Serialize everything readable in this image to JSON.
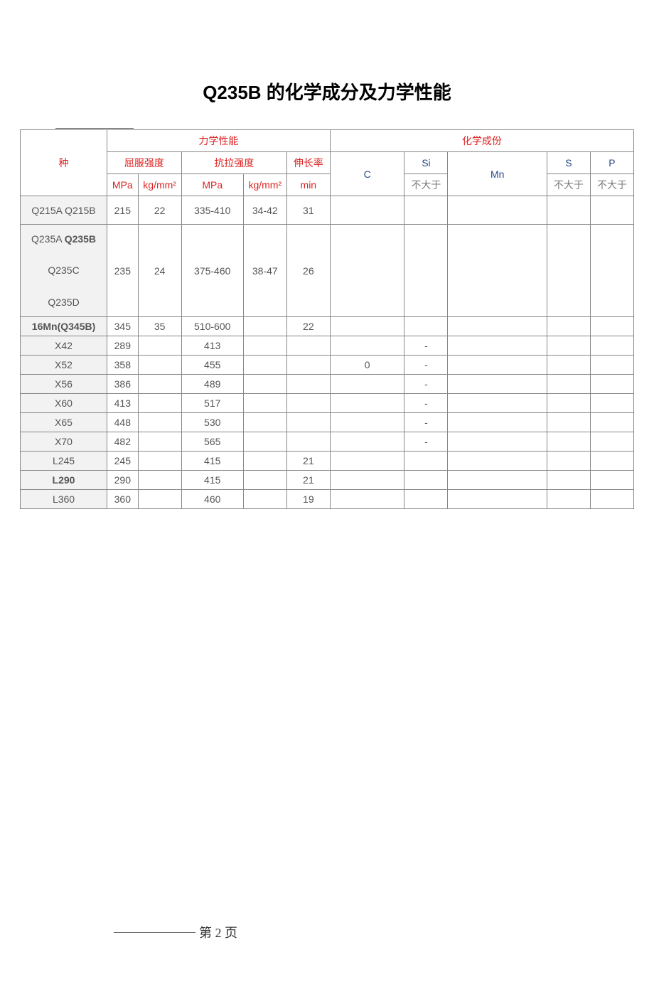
{
  "title": "Q235B 的化学成分及力学性能",
  "colors": {
    "red": "#d22",
    "navy": "#2a4a8a",
    "gray": "#7a7a7a",
    "text": "#555",
    "border": "#878787",
    "rowlabel_bg": "#f2f2f2"
  },
  "headers": {
    "species": "种",
    "mech": "力学性能",
    "chem": "化学成份",
    "yield": "屈服强度",
    "tensile": "抗拉强度",
    "elong": "伸长率",
    "c": "C",
    "si": "Si",
    "mn": "Mn",
    "s": "S",
    "p": "P",
    "mpa": "MPa",
    "kgmm2": "kg/mm²",
    "min": "min",
    "not_more": "不大于"
  },
  "rows": [
    {
      "species": "Q215A Q215B",
      "bold_species": false,
      "mpa1": "215",
      "kg1": "22",
      "mpa2": "335-410",
      "kg2": "34-42",
      "min": "31",
      "c": "",
      "si": "",
      "mn": "",
      "s": "",
      "p": "",
      "tall": false
    },
    {
      "species": "Q235A Q235B\n\nQ235C\n\nQ235D",
      "bold_species": false,
      "mpa1": "235",
      "kg1": "24",
      "mpa2": "375-460",
      "kg2": "38-47",
      "min": "26",
      "c": "",
      "si": "",
      "mn": "",
      "s": "",
      "p": "",
      "tall": true
    },
    {
      "species": "16Mn(Q345B)",
      "bold_species": true,
      "mpa1": "345",
      "kg1": "35",
      "mpa2": "510-600",
      "kg2": "",
      "min": "22",
      "c": "",
      "si": "",
      "mn": "",
      "s": "",
      "p": "",
      "tall": false
    },
    {
      "species": "X42",
      "bold_species": false,
      "mpa1": "289",
      "kg1": "",
      "mpa2": "413",
      "kg2": "",
      "min": "",
      "c": "",
      "si": "-",
      "mn": "",
      "s": "",
      "p": "",
      "tall": false
    },
    {
      "species": "X52",
      "bold_species": false,
      "mpa1": "358",
      "kg1": "",
      "mpa2": "455",
      "kg2": "",
      "min": "",
      "c": "0",
      "si": "-",
      "mn": "",
      "s": "",
      "p": "",
      "tall": false
    },
    {
      "species": "X56",
      "bold_species": false,
      "mpa1": "386",
      "kg1": "",
      "mpa2": "489",
      "kg2": "",
      "min": "",
      "c": "",
      "si": "-",
      "mn": "",
      "s": "",
      "p": "",
      "tall": false
    },
    {
      "species": "X60",
      "bold_species": false,
      "mpa1": "413",
      "kg1": "",
      "mpa2": "517",
      "kg2": "",
      "min": "",
      "c": "",
      "si": "-",
      "mn": "",
      "s": "",
      "p": "",
      "tall": false
    },
    {
      "species": "X65",
      "bold_species": false,
      "mpa1": "448",
      "kg1": "",
      "mpa2": "530",
      "kg2": "",
      "min": "",
      "c": "",
      "si": "-",
      "mn": "",
      "s": "",
      "p": "",
      "tall": false
    },
    {
      "species": "X70",
      "bold_species": false,
      "mpa1": "482",
      "kg1": "",
      "mpa2": "565",
      "kg2": "",
      "min": "",
      "c": "",
      "si": "-",
      "mn": "",
      "s": "",
      "p": "",
      "tall": false
    },
    {
      "species": "L245",
      "bold_species": false,
      "mpa1": "245",
      "kg1": "",
      "mpa2": "415",
      "kg2": "",
      "min": "21",
      "c": "",
      "si": "",
      "mn": "",
      "s": "",
      "p": "",
      "tall": false
    },
    {
      "species": "L290",
      "bold_species": true,
      "mpa1": "290",
      "kg1": "",
      "mpa2": "415",
      "kg2": "",
      "min": "21",
      "c": "",
      "si": "",
      "mn": "",
      "s": "",
      "p": "",
      "tall": false
    },
    {
      "species": "L360",
      "bold_species": false,
      "mpa1": "360",
      "kg1": "",
      "mpa2": "460",
      "kg2": "",
      "min": "19",
      "c": "",
      "si": "",
      "mn": "",
      "s": "",
      "p": "",
      "tall": false
    }
  ],
  "footer": "第 2 页"
}
